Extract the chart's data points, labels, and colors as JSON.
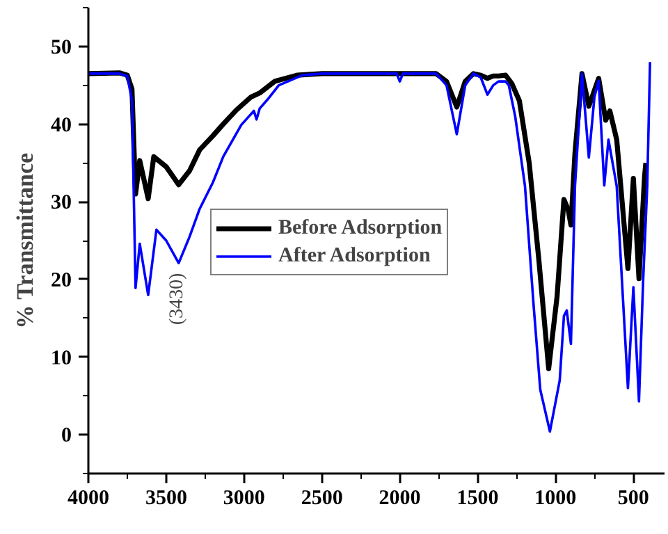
{
  "chart_data": {
    "type": "line",
    "ylabel": "% Transmittance",
    "xlim": [
      4000,
      300
    ],
    "ylim": [
      -5,
      55
    ],
    "xticks": [
      4000,
      3500,
      3000,
      2500,
      2000,
      1500,
      1000,
      500
    ],
    "yticks": [
      0,
      10,
      20,
      30,
      40,
      50
    ],
    "grid": false,
    "legend": "center",
    "marker": "none",
    "line_style": "solid",
    "annotations": [
      {
        "text": "(3430)",
        "x": 3430,
        "y": 21.9
      }
    ],
    "series": [
      {
        "name": "Before Adsorption",
        "color": "#000000",
        "x": [
          4000,
          3800,
          3750,
          3720,
          3697,
          3670,
          3616,
          3580,
          3500,
          3420,
          3350,
          3285,
          3200,
          3134,
          3050,
          2955,
          2900,
          2804,
          2660,
          2500,
          2000,
          1767,
          1700,
          1634,
          1580,
          1527,
          1480,
          1437,
          1400,
          1366,
          1321,
          1280,
          1232,
          1169,
          1107,
          1044,
          990,
          946,
          919,
          901,
          875,
          830,
          786,
          723,
          678,
          651,
          607,
          535,
          500,
          464,
          428,
          420
        ],
        "values": [
          46.5,
          46.6,
          46.3,
          44.5,
          31,
          35.3,
          30.4,
          35.8,
          34.5,
          32.2,
          34,
          36.7,
          38.5,
          40,
          41.8,
          43.5,
          44,
          45.5,
          46.3,
          46.5,
          46.5,
          46.5,
          45.5,
          42.2,
          45.5,
          46.5,
          46.3,
          45.9,
          46.2,
          46.2,
          46.3,
          45.2,
          43,
          35,
          22.5,
          8.5,
          17.8,
          30.3,
          29,
          27,
          36.3,
          46.5,
          42.3,
          45.9,
          40.5,
          41.7,
          38,
          21.4,
          33,
          20.1,
          33.3,
          35
        ]
      },
      {
        "name": "After Adsorption",
        "color": "#0000ff",
        "x": [
          4000,
          3800,
          3750,
          3720,
          3697,
          3670,
          3616,
          3563,
          3500,
          3420,
          3350,
          3285,
          3200,
          3134,
          3018,
          2937,
          2920,
          2900,
          2848,
          2777,
          2625,
          2500,
          2020,
          2000,
          1980,
          1767,
          1700,
          1634,
          1580,
          1527,
          1480,
          1437,
          1400,
          1366,
          1321,
          1300,
          1259,
          1196,
          1142,
          1098,
          1036,
          973,
          946,
          928,
          901,
          875,
          830,
          786,
          750,
          723,
          687,
          660,
          607,
          535,
          500,
          464,
          437,
          411,
          393
        ],
        "values": [
          46.5,
          46.5,
          46.2,
          43,
          18.9,
          24.6,
          18,
          26.4,
          25,
          22.1,
          25.5,
          29.1,
          32.5,
          35.8,
          39.9,
          41.7,
          40.6,
          42,
          43.2,
          45,
          46.3,
          46.5,
          46.5,
          45.5,
          46.5,
          46.5,
          45,
          38.7,
          45,
          46.5,
          46,
          43.8,
          45,
          45.5,
          45.5,
          45,
          41,
          32,
          17,
          5.8,
          0.4,
          7,
          15.3,
          16,
          11.7,
          32,
          46.5,
          35.7,
          43.5,
          45.6,
          32.1,
          38,
          32,
          6,
          19,
          4.3,
          20,
          32,
          48
        ]
      }
    ]
  }
}
